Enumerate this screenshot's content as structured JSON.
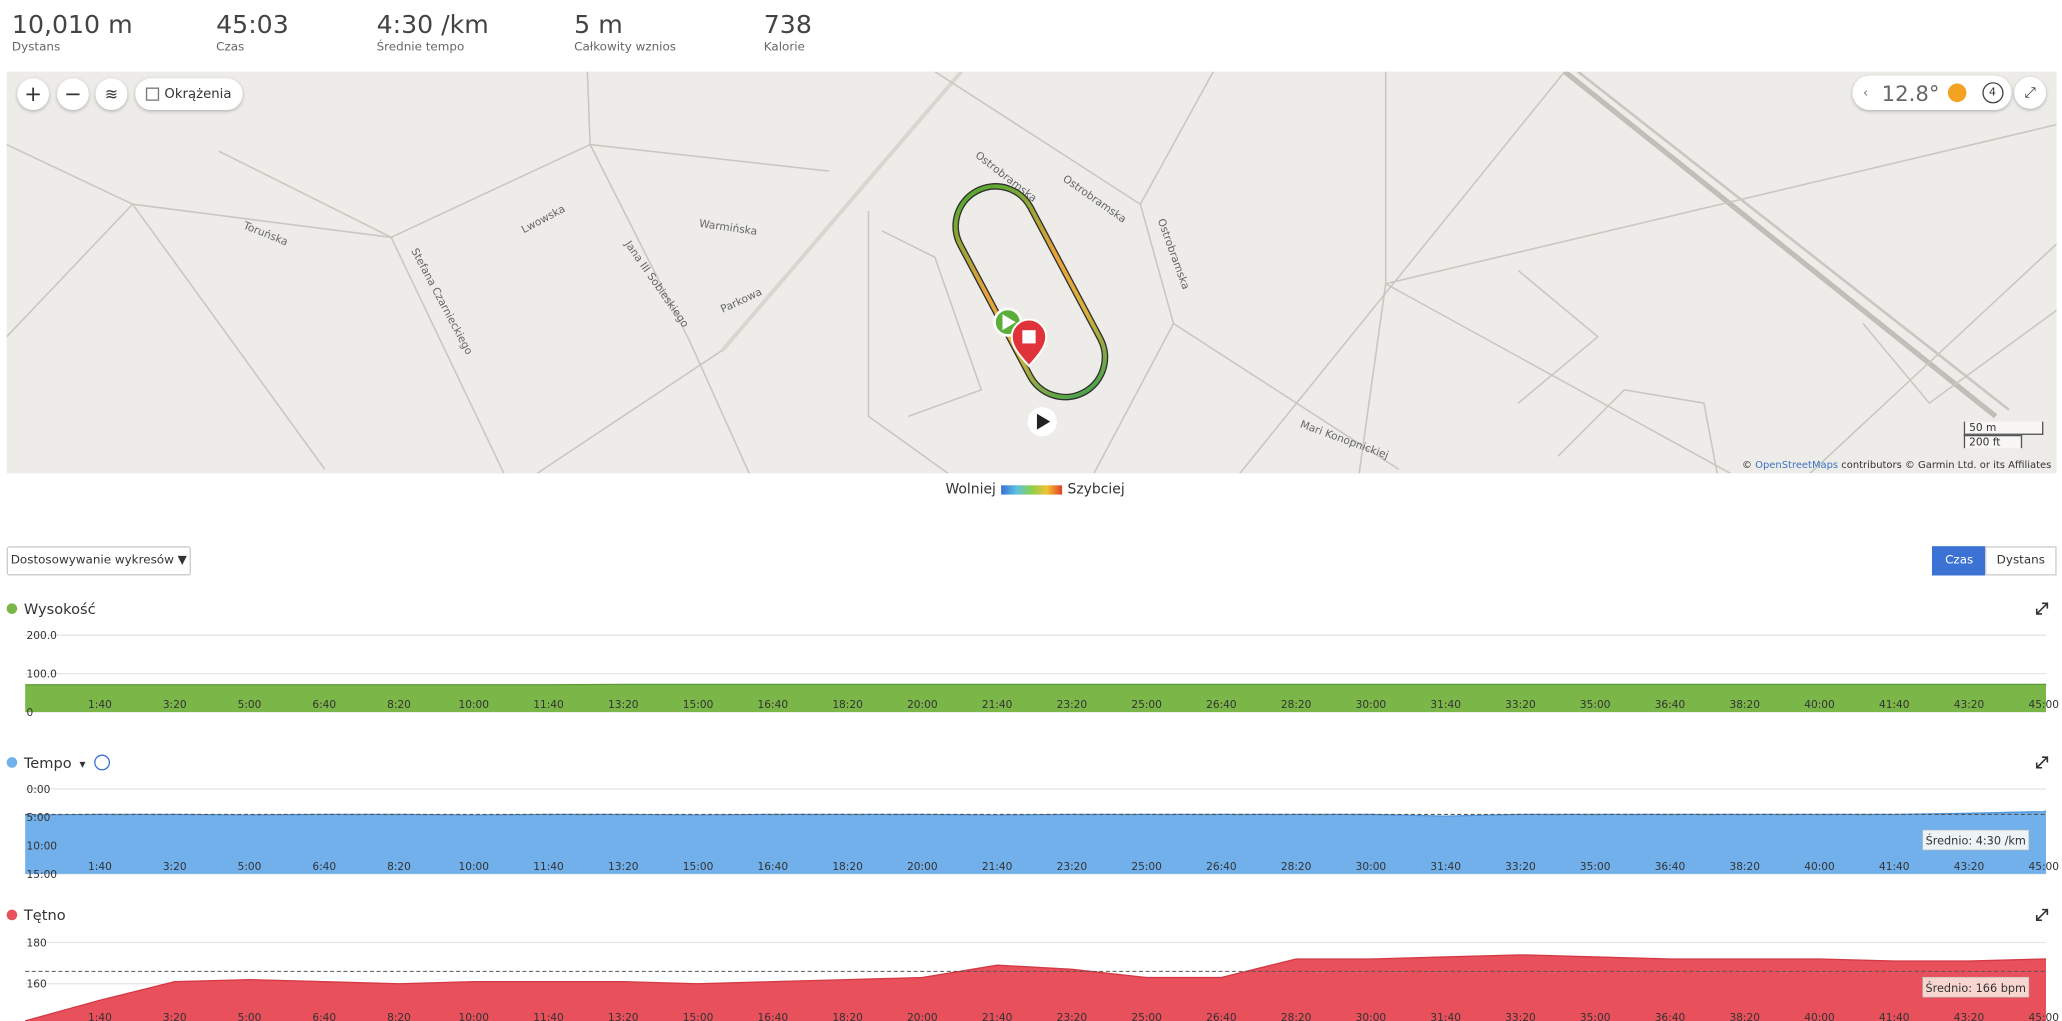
{
  "stats": [
    {
      "value": "10,010 m",
      "label": "Dystans"
    },
    {
      "value": "45:03",
      "label": "Czas"
    },
    {
      "value": "4:30 /km",
      "label": "Średnie tempo"
    },
    {
      "value": "5 m",
      "label": "Całkowity wznios"
    },
    {
      "value": "738",
      "label": "Kalorie"
    }
  ],
  "map": {
    "laps": "Okrążenia",
    "temperature": "12.8°",
    "wind": "4",
    "scale": [
      "50 m",
      "200 ft"
    ],
    "attribution": {
      "prefix": "©",
      "link": "OpenStreetMaps",
      "suffix": "contributors © Garmin Ltd. or its Affiliates"
    },
    "streets": [
      "Toruńska",
      "Lwowska",
      "Warmińska",
      "Ostrobramska",
      "Ostrobramska",
      "Ostrobramska",
      "Jana III Sobieskiego",
      "Parkowa",
      "Stefana Czarnieckiego",
      "Mari Konopnickiej"
    ]
  },
  "legend": {
    "slow": "Wolniej",
    "fast": "Szybciej"
  },
  "customize": "Dostosowywanie wykresów ▼",
  "axis_toggle": [
    "Czas",
    "Dystans"
  ],
  "chart_data": [
    {
      "type": "area",
      "title": "Wysokość",
      "color": "#7ab648",
      "line_color": "#5e9a33",
      "x": [
        0,
        100,
        200,
        300,
        400,
        500,
        600,
        700,
        800,
        900,
        1000,
        1100,
        1200,
        1300,
        1400,
        1500,
        1600,
        1700,
        1800,
        1900,
        2000,
        2100,
        2200,
        2300,
        2400,
        2500,
        2600,
        2700,
        2703
      ],
      "values": [
        71,
        71,
        71,
        71,
        71,
        71,
        71,
        71,
        72,
        72,
        72,
        72,
        72,
        72,
        72,
        72,
        72,
        72,
        72,
        72,
        72,
        72,
        72,
        72,
        72,
        72,
        72,
        72,
        72
      ],
      "xlim": [
        0,
        2703
      ],
      "ylim": [
        0,
        200
      ],
      "yticks": [
        0,
        {
          "value": 100,
          "label": "100.0"
        },
        {
          "value": 200,
          "label": "200.0"
        }
      ],
      "xticks": [
        {
          "value": 100,
          "label": "1:40"
        },
        {
          "value": 200,
          "label": "3:20"
        },
        {
          "value": 300,
          "label": "5:00"
        },
        {
          "value": 400,
          "label": "6:40"
        },
        {
          "value": 500,
          "label": "8:20"
        },
        {
          "value": 600,
          "label": "10:00"
        },
        {
          "value": 700,
          "label": "11:40"
        },
        {
          "value": 800,
          "label": "13:20"
        },
        {
          "value": 900,
          "label": "15:00"
        },
        {
          "value": 1000,
          "label": "16:40"
        },
        {
          "value": 1100,
          "label": "18:20"
        },
        {
          "value": 1200,
          "label": "20:00"
        },
        {
          "value": 1300,
          "label": "21:40"
        },
        {
          "value": 1400,
          "label": "23:20"
        },
        {
          "value": 1500,
          "label": "25:00"
        },
        {
          "value": 1600,
          "label": "26:40"
        },
        {
          "value": 1700,
          "label": "28:20"
        },
        {
          "value": 1800,
          "label": "30:00"
        },
        {
          "value": 1900,
          "label": "31:40"
        },
        {
          "value": 2000,
          "label": "33:20"
        },
        {
          "value": 2100,
          "label": "35:00"
        },
        {
          "value": 2200,
          "label": "36:40"
        },
        {
          "value": 2300,
          "label": "38:20"
        },
        {
          "value": 2400,
          "label": "40:00"
        },
        {
          "value": 2500,
          "label": "41:40"
        },
        {
          "value": 2600,
          "label": "43:20"
        },
        {
          "value": 2700,
          "label": "45:00"
        }
      ],
      "grid": true
    },
    {
      "type": "area",
      "title": "Tempo",
      "color": "#71b0ea",
      "line_color": "#4f97dd",
      "y_inverted": true,
      "x": [
        0,
        100,
        200,
        300,
        400,
        500,
        600,
        700,
        800,
        900,
        1000,
        1100,
        1200,
        1300,
        1400,
        1500,
        1600,
        1700,
        1800,
        1900,
        2000,
        2100,
        2200,
        2300,
        2400,
        2500,
        2600,
        2700,
        2703
      ],
      "values": [
        4.6,
        4.5,
        4.5,
        4.6,
        4.5,
        4.5,
        4.6,
        4.5,
        4.5,
        4.6,
        4.5,
        4.5,
        4.5,
        4.6,
        4.5,
        4.5,
        4.5,
        4.5,
        4.5,
        4.8,
        4.5,
        4.5,
        4.5,
        4.5,
        4.5,
        4.5,
        4.3,
        4.0,
        3.9
      ],
      "xlim": [
        0,
        2703
      ],
      "ylim": [
        0,
        15
      ],
      "yticks": [
        {
          "value": 0,
          "label": "0:00"
        },
        {
          "value": 5,
          "label": "5:00"
        },
        {
          "value": 10,
          "label": "10:00"
        },
        {
          "value": 15,
          "label": "15:00"
        }
      ],
      "xticks": [
        {
          "value": 100,
          "label": "1:40"
        },
        {
          "value": 200,
          "label": "3:20"
        },
        {
          "value": 300,
          "label": "5:00"
        },
        {
          "value": 400,
          "label": "6:40"
        },
        {
          "value": 500,
          "label": "8:20"
        },
        {
          "value": 600,
          "label": "10:00"
        },
        {
          "value": 700,
          "label": "11:40"
        },
        {
          "value": 800,
          "label": "13:20"
        },
        {
          "value": 900,
          "label": "15:00"
        },
        {
          "value": 1000,
          "label": "16:40"
        },
        {
          "value": 1100,
          "label": "18:20"
        },
        {
          "value": 1200,
          "label": "20:00"
        },
        {
          "value": 1300,
          "label": "21:40"
        },
        {
          "value": 1400,
          "label": "23:20"
        },
        {
          "value": 1500,
          "label": "25:00"
        },
        {
          "value": 1600,
          "label": "26:40"
        },
        {
          "value": 1700,
          "label": "28:20"
        },
        {
          "value": 1800,
          "label": "30:00"
        },
        {
          "value": 1900,
          "label": "31:40"
        },
        {
          "value": 2000,
          "label": "33:20"
        },
        {
          "value": 2100,
          "label": "35:00"
        },
        {
          "value": 2200,
          "label": "36:40"
        },
        {
          "value": 2300,
          "label": "38:20"
        },
        {
          "value": 2400,
          "label": "40:00"
        },
        {
          "value": 2500,
          "label": "41:40"
        },
        {
          "value": 2600,
          "label": "43:20"
        },
        {
          "value": 2700,
          "label": "45:00"
        }
      ],
      "grid": true,
      "average": {
        "value": 4.5,
        "label": "Średnio: 4:30 /km"
      }
    },
    {
      "type": "area",
      "title": "Tętno",
      "color": "#e8505b",
      "line_color": "#d33a45",
      "x": [
        0,
        100,
        200,
        300,
        400,
        500,
        600,
        700,
        800,
        900,
        1000,
        1100,
        1200,
        1300,
        1400,
        1500,
        1600,
        1700,
        1800,
        1900,
        2000,
        2100,
        2200,
        2300,
        2400,
        2500,
        2600,
        2700,
        2703
      ],
      "values": [
        142,
        152,
        161,
        162,
        161,
        160,
        161,
        161,
        161,
        160,
        161,
        162,
        163,
        169,
        167,
        163,
        163,
        172,
        172,
        173,
        174,
        173,
        172,
        172,
        172,
        171,
        171,
        172,
        172
      ],
      "xlim": [
        0,
        2703
      ],
      "ylim": [
        140,
        185
      ],
      "yticks": [
        140,
        160,
        180
      ],
      "xticks": [
        {
          "value": 100,
          "label": "1:40"
        },
        {
          "value": 200,
          "label": "3:20"
        },
        {
          "value": 300,
          "label": "5:00"
        },
        {
          "value": 400,
          "label": "6:40"
        },
        {
          "value": 500,
          "label": "8:20"
        },
        {
          "value": 600,
          "label": "10:00"
        },
        {
          "value": 700,
          "label": "11:40"
        },
        {
          "value": 800,
          "label": "13:20"
        },
        {
          "value": 900,
          "label": "15:00"
        },
        {
          "value": 1000,
          "label": "16:40"
        },
        {
          "value": 1100,
          "label": "18:20"
        },
        {
          "value": 1200,
          "label": "20:00"
        },
        {
          "value": 1300,
          "label": "21:40"
        },
        {
          "value": 1400,
          "label": "23:20"
        },
        {
          "value": 1500,
          "label": "25:00"
        },
        {
          "value": 1600,
          "label": "26:40"
        },
        {
          "value": 1700,
          "label": "28:20"
        },
        {
          "value": 1800,
          "label": "30:00"
        },
        {
          "value": 1900,
          "label": "31:40"
        },
        {
          "value": 2000,
          "label": "33:20"
        },
        {
          "value": 2100,
          "label": "35:00"
        },
        {
          "value": 2200,
          "label": "36:40"
        },
        {
          "value": 2300,
          "label": "38:20"
        },
        {
          "value": 2400,
          "label": "40:00"
        },
        {
          "value": 2500,
          "label": "41:40"
        },
        {
          "value": 2600,
          "label": "43:20"
        },
        {
          "value": 2700,
          "label": "45:00"
        }
      ],
      "grid": true,
      "average": {
        "value": 166,
        "label": "Średnio: 166 bpm"
      }
    }
  ]
}
